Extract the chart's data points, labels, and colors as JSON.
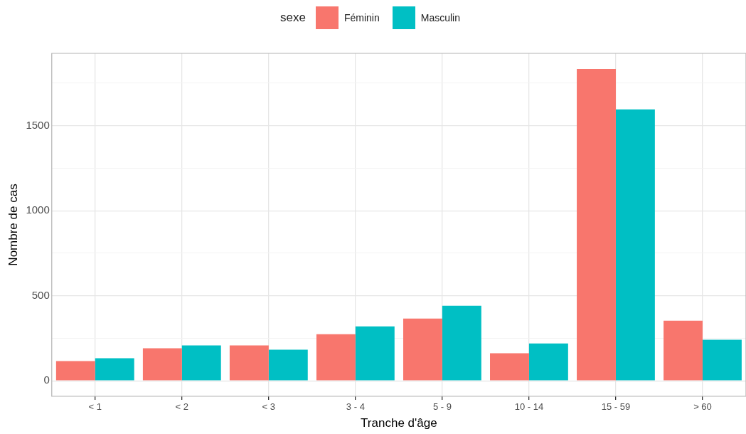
{
  "chart_data": {
    "type": "bar",
    "xlabel": "Tranche d'âge",
    "ylabel": "Nombre de cas",
    "legend_title": "sexe",
    "legend": "top",
    "categories": [
      "< 1",
      "< 2",
      "< 3",
      "3 - 4",
      "5 - 9",
      "10 - 14",
      "15 - 59",
      "> 60"
    ],
    "series": [
      {
        "name": "Féminin",
        "color": "#f8766d",
        "values": [
          116,
          191,
          208,
          274,
          366,
          162,
          1833,
          353
        ]
      },
      {
        "name": "Masculin",
        "color": "#00bfc4",
        "values": [
          133,
          208,
          183,
          320,
          441,
          220,
          1596,
          241
        ]
      }
    ],
    "ylim": [
      -91,
      1925
    ],
    "yticks": [
      0,
      {
        "value": 250,
        "label": null
      },
      500,
      {
        "value": 750,
        "label": null
      },
      1000,
      {
        "value": 1250,
        "label": null
      },
      1500,
      {
        "value": 1750,
        "label": null
      }
    ],
    "grid": true
  }
}
